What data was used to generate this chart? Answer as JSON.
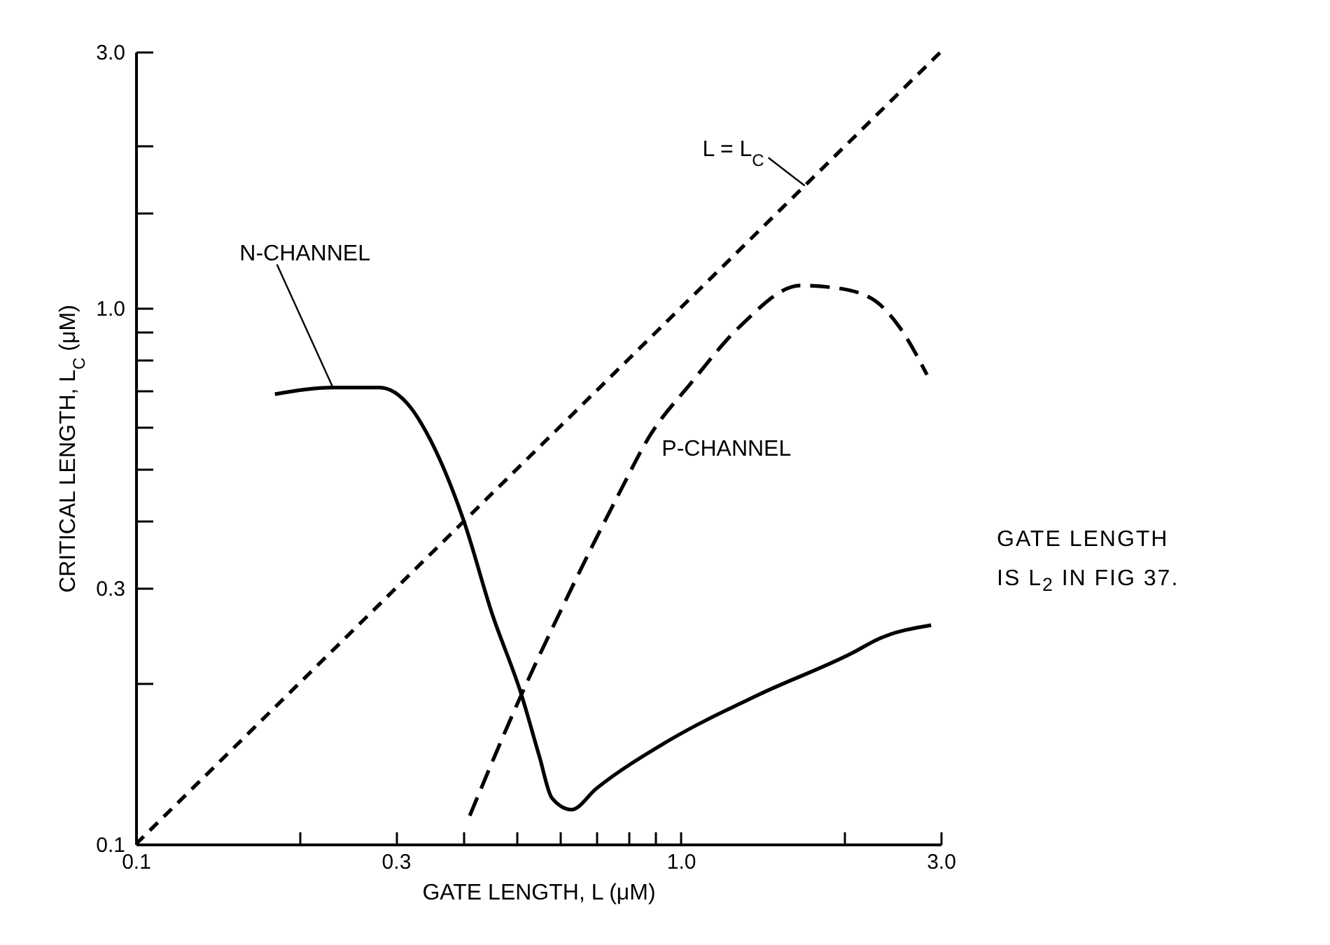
{
  "chart_data": {
    "type": "line",
    "xlabel": "GATE LENGTH, L (μM)",
    "ylabel": "CRITICAL LENGTH, L$_{C}$ (μM)",
    "annotations": [
      "GATE LENGTH IS L$_{2}$ IN FIG 37."
    ],
    "log": "xy",
    "xlim": [
      0.1,
      3
    ],
    "ylim": [
      0.1,
      3
    ],
    "xticks": [
      0.1,
      {
        "value": 0.2,
        "label": null
      },
      0.3,
      {
        "value": 0.4,
        "label": null
      },
      {
        "value": 0.5,
        "label": null
      },
      {
        "value": 0.6,
        "label": null
      },
      {
        "value": 0.7,
        "label": null
      },
      {
        "value": 0.8,
        "label": null
      },
      {
        "value": 0.9,
        "label": null
      },
      {
        "value": 1,
        "label": "1.0"
      },
      {
        "value": 2,
        "label": null
      },
      {
        "value": 3,
        "label": "3.0"
      }
    ],
    "yticks": [
      0.1,
      {
        "value": 0.2,
        "label": null
      },
      0.3,
      {
        "value": 0.4,
        "label": null
      },
      {
        "value": 0.5,
        "label": null
      },
      {
        "value": 0.6,
        "label": null
      },
      {
        "value": 0.7,
        "label": null
      },
      {
        "value": 0.8,
        "label": null
      },
      {
        "value": 0.9,
        "label": null
      },
      {
        "value": 1,
        "label": "1.0"
      },
      {
        "value": 1.5,
        "label": null
      },
      {
        "value": 2,
        "label": null
      },
      {
        "value": 3,
        "label": "3.0"
      }
    ],
    "series": [
      {
        "name": "N-CHANNEL",
        "color": "#000000",
        "line_style": "solid",
        "x": [
          0.18,
          0.23,
          0.28,
          0.32,
          0.34,
          0.4,
          0.45,
          0.51,
          0.55,
          0.58,
          0.63,
          0.7,
          0.94,
          1.39,
          2.06,
          2.32,
          2.88
        ],
        "values": [
          0.69,
          0.71,
          0.71,
          0.65,
          0.59,
          0.4,
          0.27,
          0.19,
          0.146,
          0.122,
          0.116,
          0.127,
          0.155,
          0.19,
          0.227,
          0.242,
          0.256
        ]
      },
      {
        "name": "P-CHANNEL",
        "color": "#000000",
        "line_style": "dashed",
        "x": [
          0.41,
          0.51,
          0.61,
          0.77,
          0.88,
          1.04,
          1.28,
          1.66,
          1.91,
          2.24,
          2.52,
          2.83
        ],
        "values": [
          0.113,
          0.19,
          0.28,
          0.45,
          0.58,
          0.72,
          0.92,
          1.1,
          1.09,
          1.04,
          0.92,
          0.75
        ]
      },
      {
        "name": "L = L$_{C}$",
        "color": "#000000",
        "line_style": "dashed",
        "x": [
          0.1,
          3
        ],
        "values": [
          0.1,
          3
        ]
      }
    ]
  }
}
